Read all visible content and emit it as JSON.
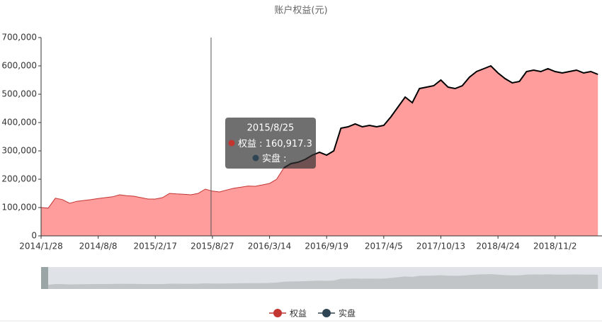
{
  "chart_data": {
    "type": "area",
    "title": "账户权益(元)",
    "categories": [
      "2014/1/28",
      null,
      null,
      null,
      null,
      null,
      null,
      null,
      "2014/8/8",
      null,
      null,
      null,
      null,
      null,
      null,
      null,
      "2015/2/17",
      null,
      null,
      null,
      null,
      null,
      null,
      null,
      "2015/8/27",
      null,
      null,
      null,
      null,
      null,
      null,
      null,
      "2016/3/14",
      null,
      null,
      null,
      null,
      null,
      null,
      null,
      "2016/9/19",
      null,
      null,
      null,
      null,
      null,
      null,
      null,
      "2017/4/5",
      null,
      null,
      null,
      null,
      null,
      null,
      null,
      "2017/10/13",
      null,
      null,
      null,
      null,
      null,
      null,
      null,
      "2018/4/24",
      null,
      null,
      null,
      null,
      null,
      null,
      null,
      "2018/11/2",
      null,
      null,
      null,
      null,
      null,
      null
    ],
    "series": [
      {
        "name": "权益",
        "color": "#c23531",
        "area_color": "#ff9c9c",
        "values": [
          100000,
          98000,
          133000,
          128000,
          115000,
          122000,
          125000,
          128000,
          132000,
          135000,
          138000,
          145000,
          142000,
          140000,
          135000,
          130000,
          130000,
          135000,
          150000,
          148000,
          147000,
          145000,
          150000,
          165000,
          158000,
          155000,
          162000,
          168000,
          172000,
          176000,
          175000,
          180000,
          185000,
          200000,
          240000,
          255000,
          260000,
          270000,
          285000,
          295000,
          285000,
          300000,
          380000,
          385000,
          395000,
          385000,
          390000,
          385000,
          390000,
          420000,
          455000,
          490000,
          470000,
          520000,
          525000,
          530000,
          550000,
          525000,
          520000,
          530000,
          560000,
          580000,
          590000,
          600000,
          575000,
          555000,
          540000,
          545000,
          580000,
          585000,
          580000,
          590000,
          580000,
          575000,
          580000,
          585000,
          575000,
          580000,
          570000
        ]
      },
      {
        "name": "实盘",
        "color": "#2f4554",
        "line_color": "#000000",
        "values": [
          null,
          null,
          null,
          null,
          null,
          null,
          null,
          null,
          null,
          null,
          null,
          null,
          null,
          null,
          null,
          null,
          null,
          null,
          null,
          null,
          null,
          null,
          null,
          null,
          null,
          null,
          null,
          null,
          null,
          null,
          null,
          null,
          null,
          null,
          240000,
          255000,
          260000,
          270000,
          285000,
          295000,
          285000,
          300000,
          380000,
          385000,
          395000,
          385000,
          390000,
          385000,
          390000,
          420000,
          455000,
          490000,
          470000,
          520000,
          525000,
          530000,
          550000,
          525000,
          520000,
          530000,
          560000,
          580000,
          590000,
          600000,
          575000,
          555000,
          540000,
          545000,
          580000,
          585000,
          580000,
          590000,
          580000,
          575000,
          580000,
          585000,
          575000,
          580000,
          570000
        ]
      }
    ],
    "ylim": [
      0,
      700000
    ],
    "yticks": [
      0,
      {
        "value": 100000,
        "label": "100,000"
      },
      {
        "value": 200000,
        "label": "200,000"
      },
      {
        "value": 300000,
        "label": "300,000"
      },
      {
        "value": 400000,
        "label": "400,000"
      },
      {
        "value": 500000,
        "label": "500,000"
      },
      {
        "value": 600000,
        "label": "600,000"
      },
      {
        "value": 700000,
        "label": "700,000"
      }
    ],
    "legend": "bottom",
    "tooltip": {
      "title": "2015/8/25",
      "values": [
        160917.3
      ],
      "value_labels": [
        "160,917.3"
      ]
    }
  }
}
